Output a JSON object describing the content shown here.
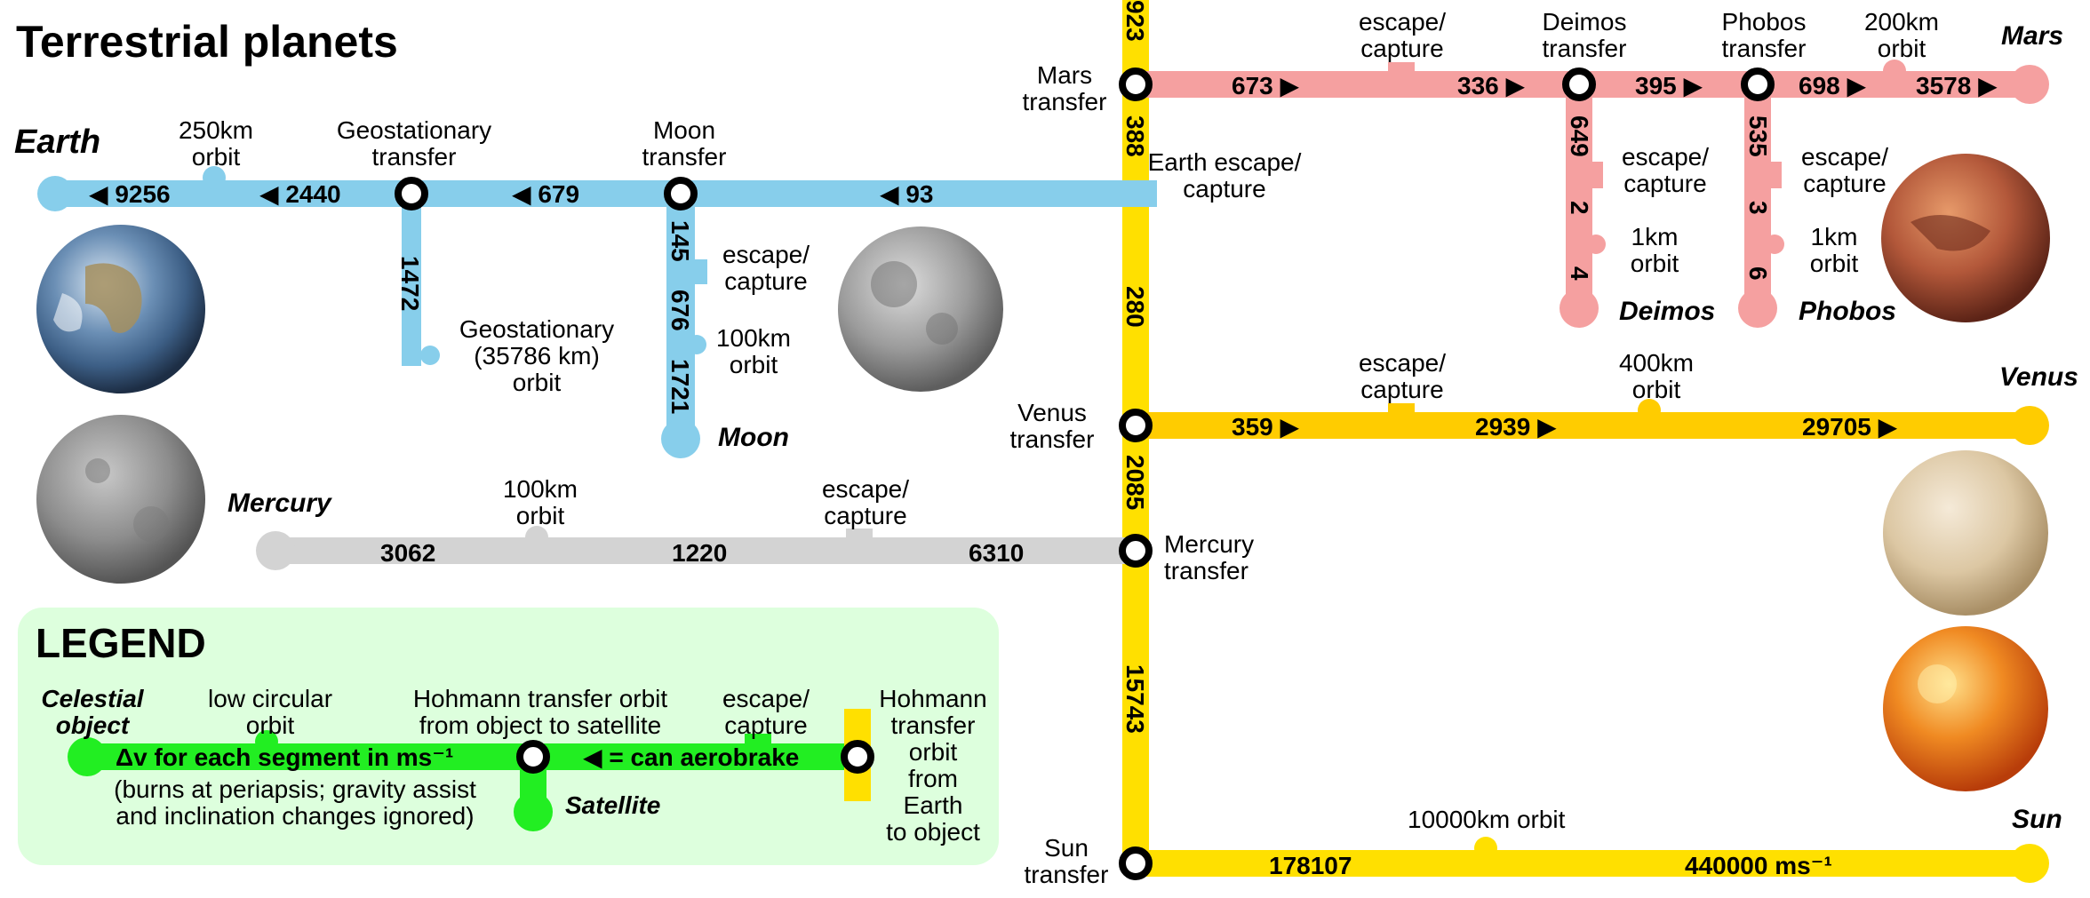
{
  "title": "Terrestrial planets",
  "colors": {
    "earth": "#87ceeb",
    "mars": "#f5a0a0",
    "venus": "#ffcc00",
    "sun": "#ffe000",
    "mercury": "#d3d3d3",
    "legend_line": "#22ee22",
    "legend_bg": "#ddffdd"
  },
  "bodies": {
    "earth": "Earth",
    "moon": "Moon",
    "mars": "Mars",
    "deimos": "Deimos",
    "phobos": "Phobos",
    "venus": "Venus",
    "mercury": "Mercury",
    "sun": "Sun"
  },
  "earth_line": {
    "deltas": [
      "◀ 9256",
      "◀ 2440",
      "◀ 679",
      "◀ 93"
    ],
    "orbit_250": "250km orbit",
    "geo_transfer": "Geostationary transfer",
    "moon_transfer": "Moon transfer",
    "escape_capture": "Earth escape/ capture"
  },
  "geo_branch": {
    "delta": "1472",
    "orbit": "Geostationary (35786 km) orbit"
  },
  "moon_branch": {
    "deltas": [
      "145",
      "676",
      "1721"
    ],
    "escape": "escape/ capture",
    "orbit": "100km orbit"
  },
  "sun_line": {
    "deltas": [
      "923",
      "388",
      "280",
      "2085",
      "15743"
    ]
  },
  "mars_line": {
    "transfer": "Mars transfer",
    "deltas": [
      "673 ▶",
      "336 ▶",
      "395 ▶",
      "698 ▶",
      "3578 ▶"
    ],
    "escape": "escape/ capture",
    "deimos_transfer": "Deimos transfer",
    "phobos_transfer": "Phobos transfer",
    "orbit_200": "200km orbit"
  },
  "deimos_branch": {
    "deltas": [
      "649",
      "2",
      "4"
    ],
    "escape": "escape/ capture",
    "orbit": "1km orbit"
  },
  "phobos_branch": {
    "deltas": [
      "535",
      "3",
      "6"
    ],
    "escape": "escape/ capture",
    "orbit": "1km orbit"
  },
  "venus_line": {
    "transfer": "Venus transfer",
    "deltas": [
      "359 ▶",
      "2939 ▶",
      "29705 ▶"
    ],
    "escape": "escape/ capture",
    "orbit_400": "400km orbit"
  },
  "mercury_line": {
    "transfer": "Mercury transfer",
    "deltas": [
      "3062",
      "1220",
      "6310"
    ],
    "orbit_100": "100km orbit",
    "escape": "escape/ capture"
  },
  "sun_bottom": {
    "transfer": "Sun transfer",
    "deltas": [
      "178107",
      "440000 ms⁻¹"
    ],
    "orbit": "10000km orbit"
  },
  "legend": {
    "title": "LEGEND",
    "celestial": "Celestial object",
    "low_orbit": "low circular orbit",
    "hohmann_sat": "Hohmann transfer orbit from object to satellite",
    "escape": "escape/ capture",
    "hohmann_earth": "Hohmann transfer orbit from Earth to object",
    "dv": "Δv for each segment in ms⁻¹",
    "aerobrake": "◀ = can aerobrake",
    "note": "(burns at periapsis; gravity assist and inclination changes ignored)",
    "satellite": "Satellite"
  }
}
